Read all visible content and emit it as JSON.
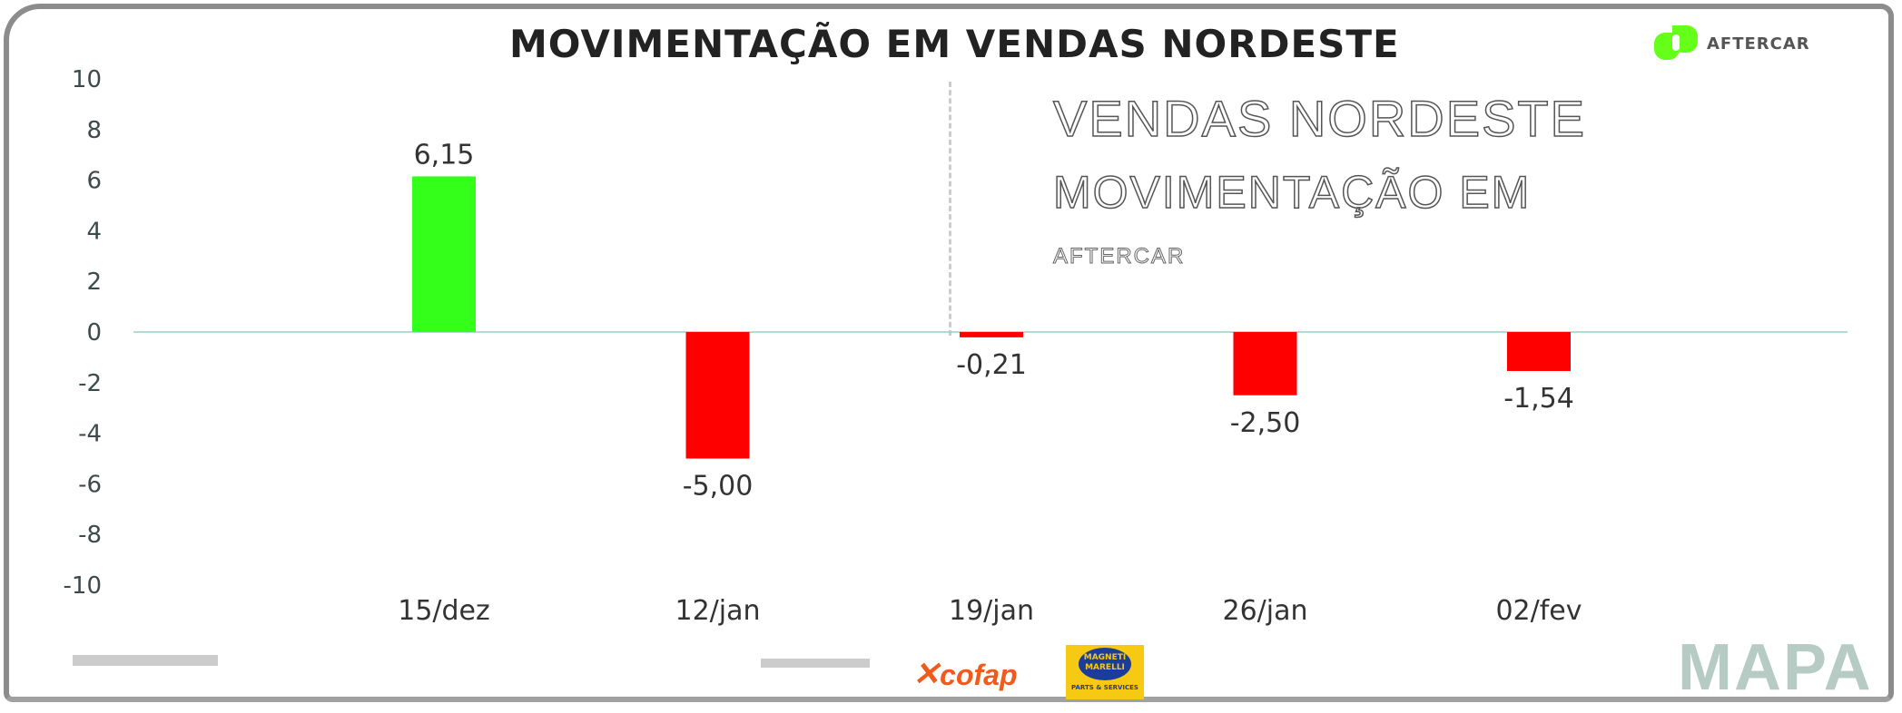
{
  "header": {
    "title": "MOVIMENTAÇÃO EM VENDAS NORDESTE",
    "ghost_left": "VENDAS NORDESTE",
    "ghost_center": "MOVIMENTAÇÃO EM",
    "ghost_brand": "AFTERCAR",
    "brand": "AFTERCAR",
    "brand_color": "#66ff1a"
  },
  "chart_data": {
    "type": "bar",
    "categories": [
      "15/dez",
      "12/jan",
      "19/jan",
      "26/jan",
      "02/fev"
    ],
    "values": [
      6.15,
      -5.0,
      -0.21,
      -2.5,
      -1.54
    ],
    "data_labels": [
      "6,15",
      "-5,00",
      "-0,21",
      "-2,50",
      "-1,54"
    ],
    "ylim": [
      -10,
      10
    ],
    "yticks": [
      10,
      8,
      6,
      4,
      2,
      0,
      -2,
      -4,
      -6,
      -8,
      -10
    ],
    "positive_color": "#33ff1a",
    "negative_color": "#ff0000",
    "grid": false,
    "legend": "none"
  },
  "footer": {
    "sponsor_1": "cofap",
    "sponsor_2": "MAGNETI MARELLI",
    "sponsor_2_sub": "PARTS & SERVICES",
    "logo": "MAPA"
  }
}
